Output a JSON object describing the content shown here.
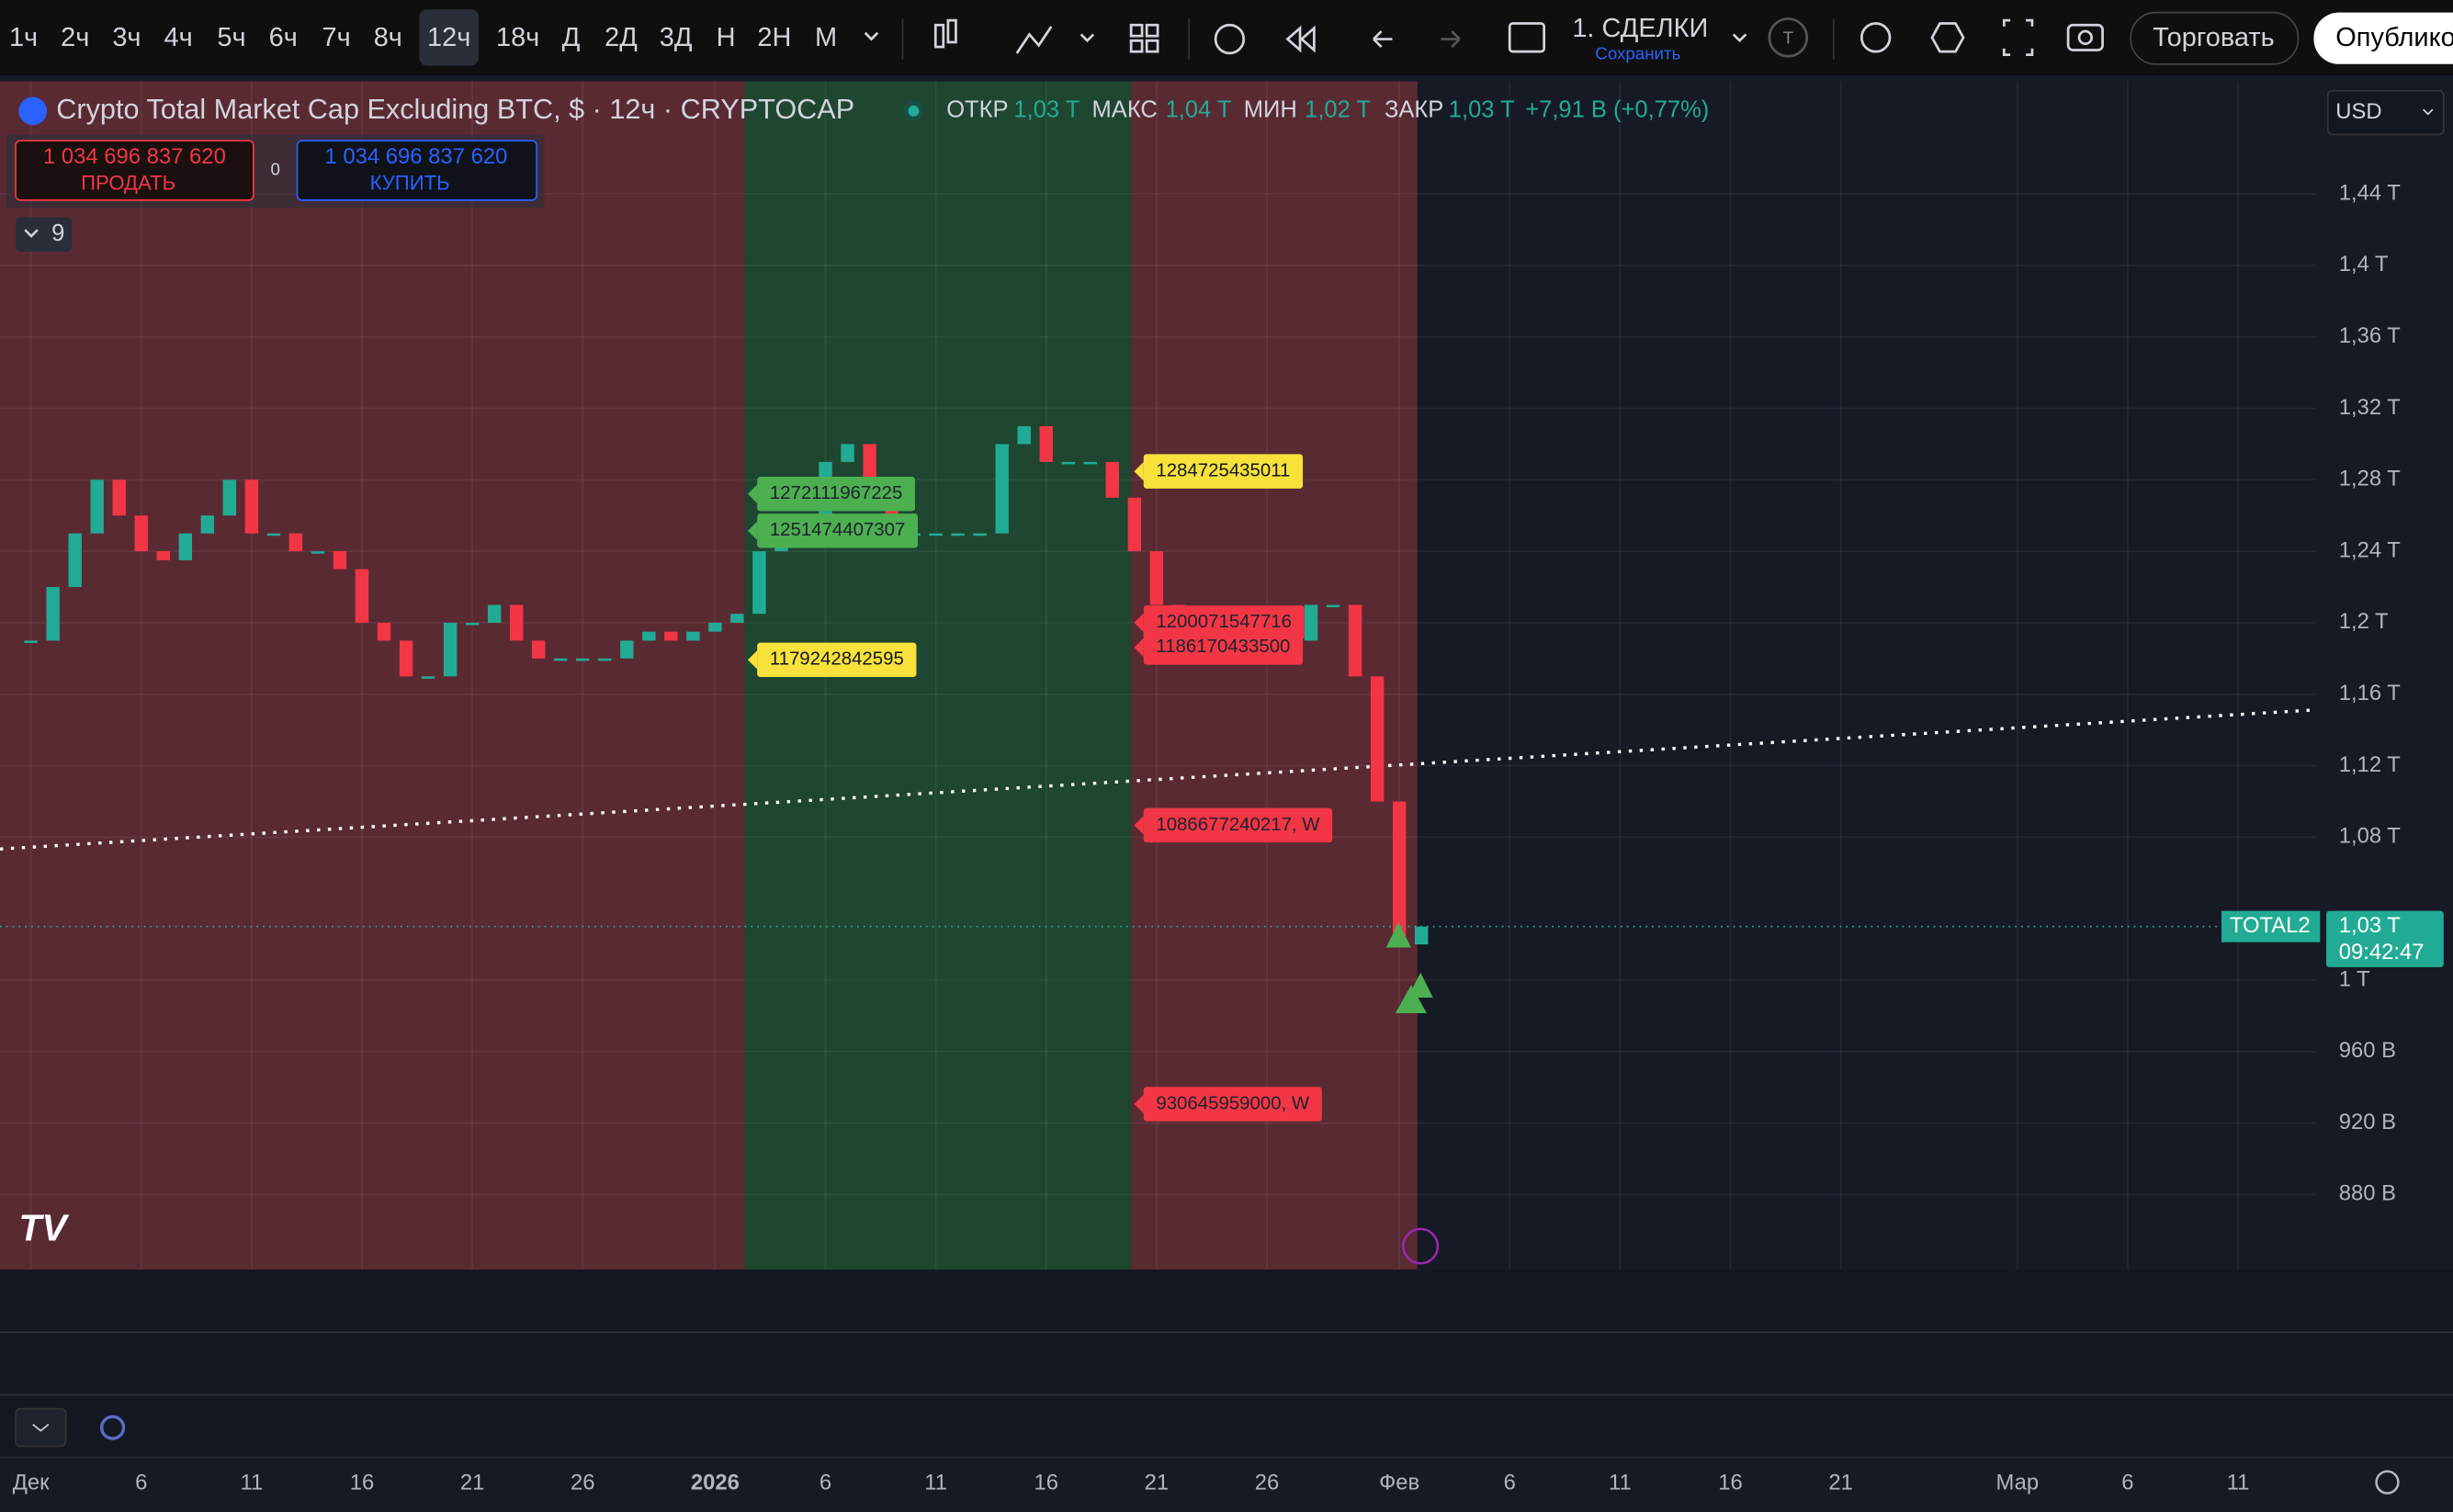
{
  "toolbar": {
    "intervals": [
      "1ч",
      "2ч",
      "3ч",
      "4ч",
      "5ч",
      "6ч",
      "7ч",
      "8ч",
      "12ч",
      "18ч",
      "Д",
      "2Д",
      "3Д",
      "Н",
      "2Н",
      "М"
    ],
    "layout": "1. СДЕЛКИ",
    "save": "Сохранить",
    "avatar": "T",
    "trade": "Торговать",
    "publish": "Опубликовать"
  },
  "symbol": {
    "title": "Crypto Total Market Cap Excluding BTC, $ · 12ч · CRYPTOCAP",
    "open_label": "ОТКР",
    "open": "1,03 T",
    "high_label": "МАКС",
    "high": "1,04 T",
    "low_label": "МИН",
    "low": "1,02 T",
    "close_label": "ЗАКР",
    "close": "1,03 T",
    "change": "+7,91 B (+0,77%)"
  },
  "trade_panel": {
    "sell_price": "1 034 696 837 620",
    "sell": "ПРОДАТЬ",
    "spread": "0",
    "buy_price": "1 034 696 837 620",
    "buy": "КУПИТЬ"
  },
  "indicators_count": "9",
  "currency": "USD",
  "chart_data": {
    "type": "candlestick",
    "up_color": "#22ab94",
    "down_color": "#f23645",
    "x": [
      0,
      1,
      2,
      3,
      4,
      5,
      6,
      7,
      8,
      9,
      10,
      11,
      12,
      13,
      14,
      15,
      16,
      17,
      18,
      19,
      20,
      21,
      22,
      23,
      24,
      25,
      26,
      27,
      28,
      29,
      30,
      31,
      32,
      33,
      34,
      35,
      36,
      37,
      38,
      39,
      40,
      41,
      42,
      43,
      44,
      45,
      46,
      47,
      48,
      49,
      50,
      51,
      52,
      53,
      54,
      55,
      56,
      57,
      58,
      59,
      60,
      61,
      62,
      63
    ],
    "values": [
      1.19,
      1.22,
      1.25,
      1.28,
      1.26,
      1.24,
      1.235,
      1.25,
      1.26,
      1.28,
      1.25,
      1.25,
      1.24,
      1.24,
      1.23,
      1.2,
      1.19,
      1.17,
      1.17,
      1.2,
      1.2,
      1.21,
      1.19,
      1.18,
      1.18,
      1.18,
      1.18,
      1.19,
      1.195,
      1.19,
      1.195,
      1.2,
      1.205,
      1.24,
      1.25,
      1.26,
      1.29,
      1.3,
      1.27,
      1.25,
      1.25,
      1.25,
      1.25,
      1.25,
      1.3,
      1.31,
      1.29,
      1.29,
      1.29,
      1.27,
      1.24,
      1.21,
      1.2,
      1.2,
      1.2,
      1.2,
      1.18,
      1.19,
      1.21,
      1.21,
      1.17,
      1.1,
      1.02,
      1.03
    ],
    "xlim": [
      -1.4,
      103.5
    ],
    "xticks": [
      {
        "value": 0,
        "label": "Дек"
      },
      {
        "value": 5,
        "label": "6"
      },
      {
        "value": 10,
        "label": "11"
      },
      {
        "value": 15,
        "label": "16"
      },
      {
        "value": 20,
        "label": "21"
      },
      {
        "value": 25,
        "label": "26"
      },
      {
        "value": 31,
        "label": "2026"
      },
      {
        "value": 36,
        "label": "6"
      },
      {
        "value": 41,
        "label": "11"
      },
      {
        "value": 46,
        "label": "16"
      },
      {
        "value": 51,
        "label": "21"
      },
      {
        "value": 56,
        "label": "26"
      },
      {
        "value": 62,
        "label": "Фев"
      },
      {
        "value": 67,
        "label": "6"
      },
      {
        "value": 72,
        "label": "11"
      },
      {
        "value": 77,
        "label": "16"
      },
      {
        "value": 82,
        "label": "21"
      },
      {
        "value": 90,
        "label": "Мар"
      },
      {
        "value": 95,
        "label": "6"
      },
      {
        "value": 100,
        "label": "11"
      }
    ],
    "ylim": [
      0.838,
      1.503
    ],
    "yticks": [
      {
        "value": 1.44,
        "label": "1,44 T"
      },
      {
        "value": 1.4,
        "label": "1,4 T"
      },
      {
        "value": 1.36,
        "label": "1,36 T"
      },
      {
        "value": 1.32,
        "label": "1,32 T"
      },
      {
        "value": 1.28,
        "label": "1,28 T"
      },
      {
        "value": 1.24,
        "label": "1,24 T"
      },
      {
        "value": 1.2,
        "label": "1,2 T"
      },
      {
        "value": 1.16,
        "label": "1,16 T"
      },
      {
        "value": 1.12,
        "label": "1,12 T"
      },
      {
        "value": 1.08,
        "label": "1,08 T"
      },
      {
        "value": 1,
        "label": "1 T"
      },
      {
        "value": 0.96,
        "label": "960 B"
      },
      {
        "value": 0.92,
        "label": "920 B"
      },
      {
        "value": 0.88,
        "label": "880 B"
      }
    ],
    "last_price": {
      "value": 1.03,
      "label": "1,03 T",
      "symbol": "TOTAL2",
      "countdown": "09:42:47"
    },
    "annotations": [
      {
        "value": 1.284725435011,
        "label": "1284725435011",
        "color": "#f7e13a"
      },
      {
        "value": 1.179242842595,
        "label": "1179242842595",
        "color": "#f7e13a"
      },
      {
        "value": 1.272111967225,
        "label": "1272111967225",
        "color": "#4caf50"
      },
      {
        "value": 1.251474407307,
        "label": "1251474407307",
        "color": "#4caf50"
      },
      {
        "value": 1.200071547716,
        "label": "1200071547716",
        "color": "#f23645"
      },
      {
        "value": 1.1861704335,
        "label": "1186170433500",
        "color": "#f23645"
      },
      {
        "value": 1.086677240217,
        "label": "1086677240217, W",
        "color": "#f23645"
      },
      {
        "value": 0.930645959,
        "label": "930645959000, W",
        "color": "#f23645"
      }
    ]
  }
}
